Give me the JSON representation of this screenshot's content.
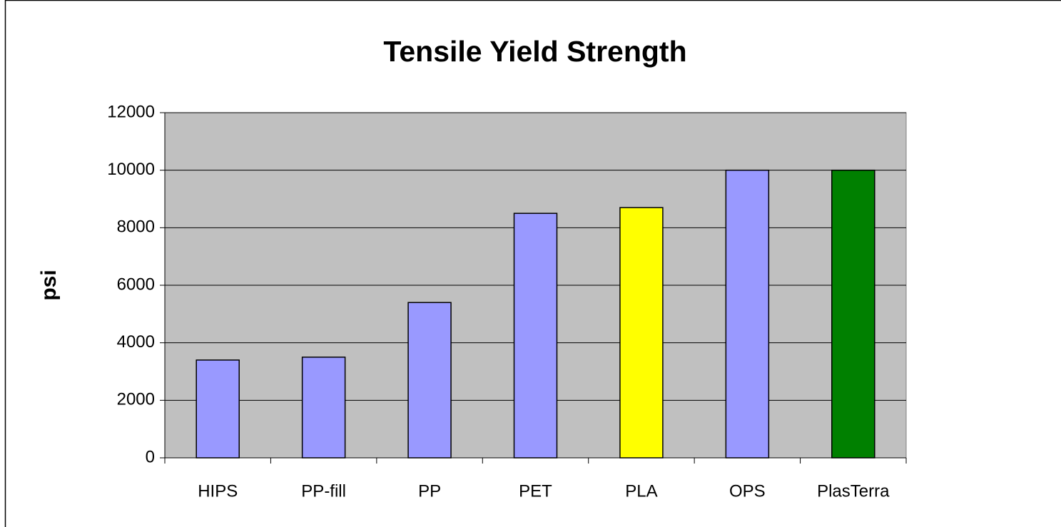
{
  "chart_data": {
    "type": "bar",
    "title": "Tensile Yield Strength",
    "y_label": "psi",
    "categories": [
      "HIPS",
      "PP-fill",
      "PP",
      "PET",
      "PLA",
      "OPS",
      "PlasTerra"
    ],
    "values": [
      3400,
      3500,
      5400,
      8500,
      8700,
      10000,
      10000
    ],
    "colors": [
      "#9999ff",
      "#9999ff",
      "#9999ff",
      "#9999ff",
      "#ffff00",
      "#9999ff",
      "#008000"
    ],
    "ylim": [
      0,
      12000
    ],
    "yticks": [
      0,
      2000,
      4000,
      6000,
      8000,
      10000,
      12000
    ],
    "grid": true
  }
}
